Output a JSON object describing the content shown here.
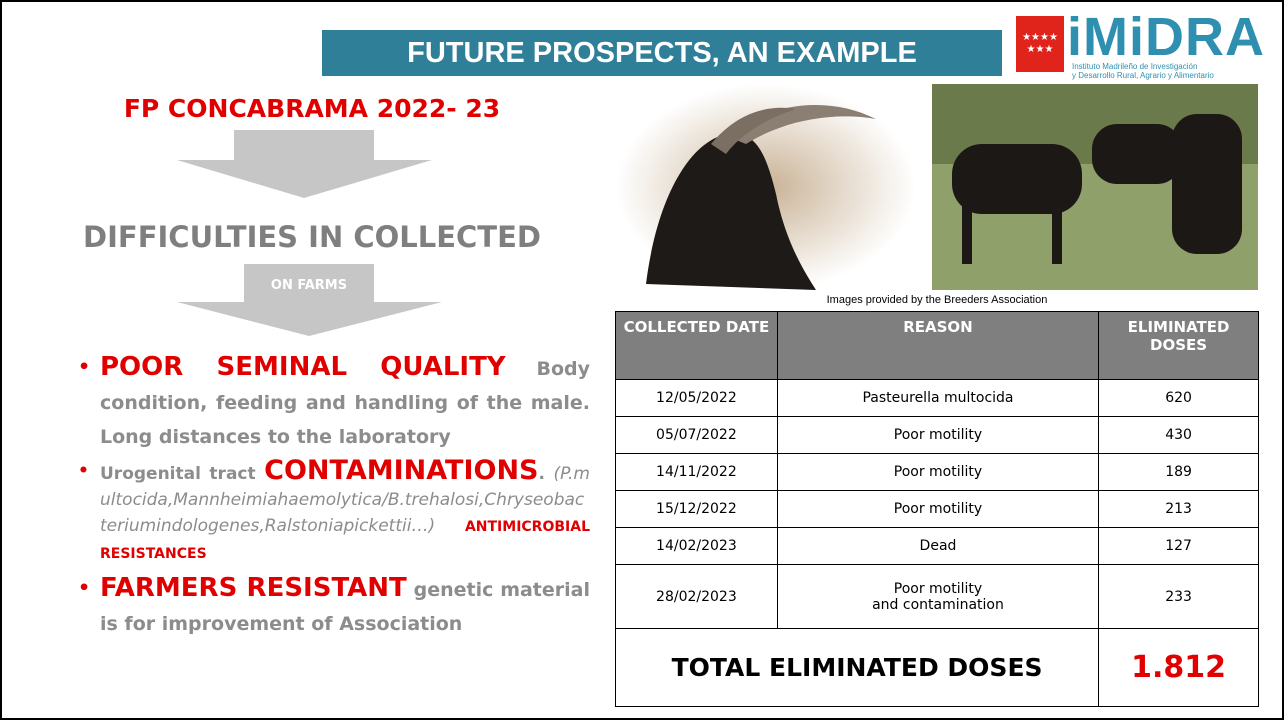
{
  "header": {
    "title": "FUTURE PROSPECTS, AN EXAMPLE",
    "logo": {
      "name": "iMiDRA",
      "subtitle": [
        "Instituto Madrileño de Investigación",
        "y Desarrollo Rural, Agrario y Alimentario"
      ]
    }
  },
  "left": {
    "project": "FP CONCABRAMA 2022- 23",
    "difficulties": "DIFFICULTIES IN COLLECTED",
    "arrow_label": "ON FARMS",
    "bullets": [
      {
        "segments": [
          "POOR SEMINAL QUALITY",
          " Body condition, feeding and handling of the male. Long distances to the laboratory"
        ]
      },
      {
        "segments": [
          "Urogenital tract ",
          "CONTAMINATIONS",
          ".",
          "(P.multocida,Mannheimiahaemolytica/B.trehalosi,Chryseobacteriumindologenes,Ralstoniapickettii…)",
          " ANTIMICROBIAL RESISTANCES"
        ]
      },
      {
        "segments": [
          "FARMERS RESISTANT",
          " genetic material is for improvement of Association"
        ]
      }
    ]
  },
  "images": {
    "caption": "Images provided by the Breeders Association"
  },
  "table": {
    "header": [
      "COLLECTED DATE",
      "REASON",
      "ELIMINATED DOSES"
    ],
    "rows": [
      [
        "12/05/2022",
        "Pasteurella multocida",
        620
      ],
      [
        "05/07/2022",
        "Poor motility",
        430
      ],
      [
        "14/11/2022",
        "Poor motility",
        189
      ],
      [
        "15/12/2022",
        "Poor motility",
        213
      ],
      [
        "14/02/2023",
        "Dead",
        127
      ],
      [
        "28/02/2023",
        [
          "Poor motility",
          "and contamination"
        ],
        233
      ]
    ],
    "total": {
      "label": "TOTAL ELIMINATED DOSES",
      "value": "1.812"
    }
  }
}
